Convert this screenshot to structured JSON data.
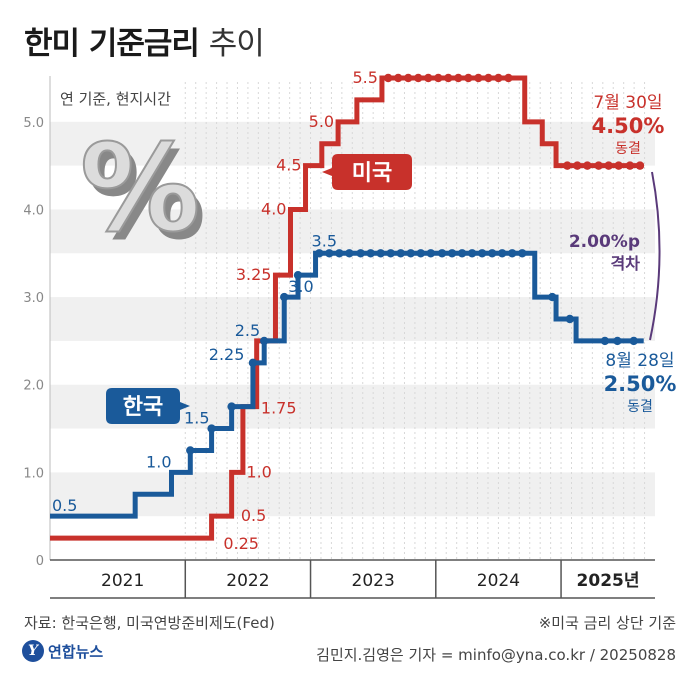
{
  "title": {
    "main": "한미 기준금리",
    "sub": "추이"
  },
  "unit_note": "연 기준, 현지시간",
  "source": "자료: 한국은행, 미국연방준비제도(Fed)",
  "note": "※미국 금리 상단 기준",
  "logo_text": "연합뉴스",
  "logo_mark": "Y",
  "credit": "김민지.김영은 기자 = minfo@yna.co.kr / 20250828",
  "icon_name": "percent-icon",
  "colors": {
    "us": "#c8312b",
    "korea": "#1a5a9a",
    "gap": "#5a3a7a",
    "grid": "#f0f0f0"
  },
  "chart_data": {
    "type": "line",
    "step": true,
    "ylim": [
      0,
      5.5
    ],
    "yticks": [
      "0",
      "1.0",
      "2.0",
      "3.0",
      "4.0",
      "5.0"
    ],
    "xlim": [
      2020.92,
      2025.75
    ],
    "years": [
      {
        "label": "2021",
        "from": 2021.0,
        "to": 2022.0
      },
      {
        "label": "2022",
        "from": 2022.0,
        "to": 2023.0
      },
      {
        "label": "2023",
        "from": 2023.0,
        "to": 2024.0
      },
      {
        "label": "2024",
        "from": 2024.0,
        "to": 2025.0
      },
      {
        "label": "2025년",
        "from": 2025.0,
        "to": 2025.75
      }
    ],
    "series": [
      {
        "name": "미국",
        "color": "#c8312b",
        "points": [
          [
            2020.92,
            0.25
          ],
          [
            2022.21,
            0.5
          ],
          [
            2022.37,
            1.0
          ],
          [
            2022.46,
            1.75
          ],
          [
            2022.57,
            2.5
          ],
          [
            2022.72,
            3.25
          ],
          [
            2022.84,
            4.0
          ],
          [
            2022.96,
            4.5
          ],
          [
            2023.09,
            4.75
          ],
          [
            2023.22,
            5.0
          ],
          [
            2023.37,
            5.25
          ],
          [
            2023.57,
            5.5
          ],
          [
            2024.71,
            5.0
          ],
          [
            2024.85,
            4.75
          ],
          [
            2024.96,
            4.5
          ],
          [
            2025.66,
            4.5
          ]
        ],
        "markers": [
          2023.62,
          2023.7,
          2023.78,
          2023.86,
          2023.94,
          2024.02,
          2024.1,
          2024.18,
          2024.26,
          2024.34,
          2024.42,
          2024.5,
          2024.58,
          2025.05,
          2025.13,
          2025.21,
          2025.3,
          2025.38,
          2025.46,
          2025.55,
          2025.63
        ]
      },
      {
        "name": "한국",
        "color": "#1a5a9a",
        "points": [
          [
            2020.92,
            0.5
          ],
          [
            2021.6,
            0.75
          ],
          [
            2021.89,
            1.0
          ],
          [
            2022.04,
            1.25
          ],
          [
            2022.21,
            1.5
          ],
          [
            2022.37,
            1.75
          ],
          [
            2022.54,
            2.25
          ],
          [
            2022.63,
            2.5
          ],
          [
            2022.79,
            3.0
          ],
          [
            2022.9,
            3.25
          ],
          [
            2023.04,
            3.5
          ],
          [
            2024.79,
            3.0
          ],
          [
            2024.96,
            2.75
          ],
          [
            2025.12,
            2.5
          ],
          [
            2025.66,
            2.5
          ]
        ],
        "markers": [
          2022.04,
          2022.21,
          2022.37,
          2022.54,
          2022.63,
          2022.79,
          2022.9,
          2023.07,
          2023.15,
          2023.23,
          2023.31,
          2023.4,
          2023.48,
          2023.56,
          2023.64,
          2023.72,
          2023.8,
          2023.88,
          2023.96,
          2024.05,
          2024.13,
          2024.21,
          2024.29,
          2024.37,
          2024.45,
          2024.53,
          2024.61,
          2024.69,
          2024.93,
          2025.07,
          2025.35,
          2025.45,
          2025.58
        ]
      }
    ],
    "labels": [
      {
        "text": "0.25",
        "x": 2022.24,
        "y": 0.25,
        "series": 0,
        "anchor": "start",
        "dx": 8,
        "dy": 6
      },
      {
        "text": "0.5",
        "x": 2022.38,
        "y": 0.5,
        "series": 0,
        "anchor": "start",
        "dx": 8,
        "dy": 0
      },
      {
        "text": "1.0",
        "x": 2022.44,
        "y": 1.0,
        "series": 0,
        "anchor": "start",
        "dx": 6,
        "dy": 0
      },
      {
        "text": "1.75",
        "x": 2022.54,
        "y": 1.75,
        "series": 0,
        "anchor": "start",
        "dx": 8,
        "dy": 2
      },
      {
        "text": "3.25",
        "x": 2022.72,
        "y": 3.25,
        "series": 0,
        "anchor": "end",
        "dx": -4,
        "dy": 0
      },
      {
        "text": "4.0",
        "x": 2022.84,
        "y": 4.0,
        "series": 0,
        "anchor": "end",
        "dx": -4,
        "dy": 0
      },
      {
        "text": "4.5",
        "x": 2022.96,
        "y": 4.5,
        "series": 0,
        "anchor": "end",
        "dx": -4,
        "dy": 0
      },
      {
        "text": "5.0",
        "x": 2023.22,
        "y": 5.0,
        "series": 0,
        "anchor": "end",
        "dx": -4,
        "dy": 0
      },
      {
        "text": "5.5",
        "x": 2023.57,
        "y": 5.5,
        "series": 0,
        "anchor": "end",
        "dx": -4,
        "dy": 0
      },
      {
        "text": "0.5",
        "x": 2020.92,
        "y": 0.5,
        "series": 1,
        "anchor": "start",
        "dx": 2,
        "dy": -10
      },
      {
        "text": "1.0",
        "x": 2021.89,
        "y": 1.0,
        "series": 1,
        "anchor": "end",
        "dx": 0,
        "dy": -10
      },
      {
        "text": "1.5",
        "x": 2022.21,
        "y": 1.5,
        "series": 1,
        "anchor": "end",
        "dx": -2,
        "dy": -10
      },
      {
        "text": "2.25",
        "x": 2022.52,
        "y": 2.25,
        "series": 1,
        "anchor": "end",
        "dx": -6,
        "dy": -8
      },
      {
        "text": "2.5",
        "x": 2022.63,
        "y": 2.5,
        "series": 1,
        "anchor": "end",
        "dx": -4,
        "dy": -10
      },
      {
        "text": "3.0",
        "x": 2022.79,
        "y": 3.0,
        "series": 1,
        "anchor": "start",
        "dx": 4,
        "dy": -10
      },
      {
        "text": "3.5",
        "x": 2023.04,
        "y": 3.5,
        "series": 1,
        "anchor": "start",
        "dx": -4,
        "dy": -12
      }
    ],
    "annotations": {
      "us": {
        "date": "7월 30일",
        "rate": "4.50%",
        "status": "동결"
      },
      "korea": {
        "date": "8월 28일",
        "rate": "2.50%",
        "status": "동결"
      },
      "gap": {
        "value": "2.00%p",
        "label": "격차"
      }
    }
  }
}
